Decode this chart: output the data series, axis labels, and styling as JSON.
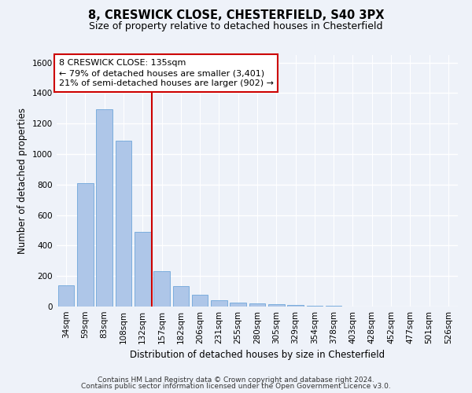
{
  "title_line1": "8, CRESWICK CLOSE, CHESTERFIELD, S40 3PX",
  "title_line2": "Size of property relative to detached houses in Chesterfield",
  "xlabel": "Distribution of detached houses by size in Chesterfield",
  "ylabel": "Number of detached properties",
  "categories": [
    "34sqm",
    "59sqm",
    "83sqm",
    "108sqm",
    "132sqm",
    "157sqm",
    "182sqm",
    "206sqm",
    "231sqm",
    "255sqm",
    "280sqm",
    "305sqm",
    "329sqm",
    "354sqm",
    "378sqm",
    "403sqm",
    "428sqm",
    "452sqm",
    "477sqm",
    "501sqm",
    "526sqm"
  ],
  "values": [
    140,
    810,
    1295,
    1090,
    490,
    232,
    135,
    75,
    42,
    28,
    20,
    17,
    12,
    5,
    3,
    2,
    2,
    1,
    0,
    0,
    0
  ],
  "bar_color": "#aec6e8",
  "bar_edge_color": "#5b9bd5",
  "vline_color": "#cc0000",
  "annotation_text": "8 CRESWICK CLOSE: 135sqm\n← 79% of detached houses are smaller (3,401)\n21% of semi-detached houses are larger (902) →",
  "annotation_box_color": "#ffffff",
  "annotation_box_edge_color": "#cc0000",
  "ylim": [
    0,
    1650
  ],
  "yticks": [
    0,
    200,
    400,
    600,
    800,
    1000,
    1200,
    1400,
    1600
  ],
  "background_color": "#eef2f9",
  "grid_color": "#ffffff",
  "footer_line1": "Contains HM Land Registry data © Crown copyright and database right 2024.",
  "footer_line2": "Contains public sector information licensed under the Open Government Licence v3.0.",
  "title_fontsize": 10.5,
  "subtitle_fontsize": 9,
  "axis_label_fontsize": 8.5,
  "tick_fontsize": 7.5,
  "annotation_fontsize": 8,
  "footer_fontsize": 6.5
}
